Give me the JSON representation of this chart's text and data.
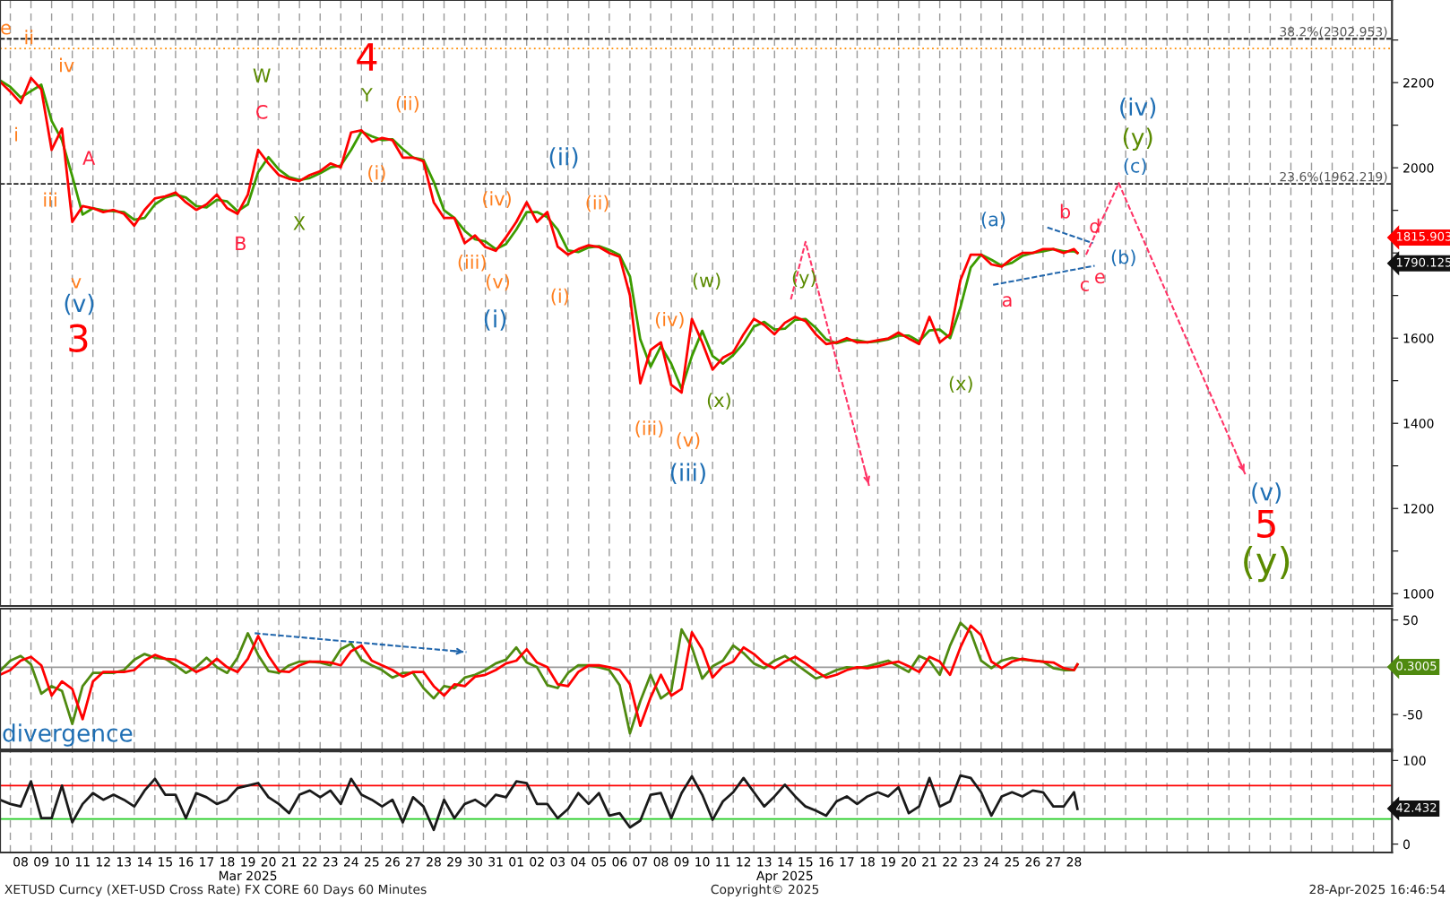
{
  "chart_data": [
    {
      "type": "line",
      "xlim": [
        "2025-03-07T12:00",
        "2025-05-13T21:30"
      ],
      "ylim": [
        971,
        2394
      ],
      "yticks": [
        1000,
        {
          "value": 1100,
          "label": null
        },
        1200,
        {
          "value": 1300,
          "label": null
        },
        1400,
        {
          "value": 1500,
          "label": null
        },
        1600,
        {
          "value": 1700,
          "label": null
        },
        {
          "value": 1800,
          "label": null
        },
        {
          "value": 1900,
          "label": null
        },
        2000,
        {
          "value": 2100,
          "label": null
        },
        2200,
        {
          "value": 2300,
          "label": null
        }
      ],
      "tick_labels": "y",
      "grid": "x",
      "marker": "none",
      "line_style": "solid",
      "x": [
        "2025-03-07T12:00",
        "2025-03-08T00:00",
        "2025-03-08T12:00",
        "2025-03-09T00:00",
        "2025-03-09T12:00",
        "2025-03-10T00:00",
        "2025-03-10T12:00",
        "2025-03-11T00:00",
        "2025-03-11T12:00",
        "2025-03-12T00:00",
        "2025-03-12T12:00",
        "2025-03-13T00:00",
        "2025-03-13T12:00",
        "2025-03-14T00:00",
        "2025-03-14T12:00",
        "2025-03-15T00:00",
        "2025-03-15T12:00",
        "2025-03-16T00:00",
        "2025-03-16T12:00",
        "2025-03-17T00:00",
        "2025-03-17T12:00",
        "2025-03-18T00:00",
        "2025-03-18T12:00",
        "2025-03-19T00:00",
        "2025-03-19T12:00",
        "2025-03-20T00:00",
        "2025-03-20T12:00",
        "2025-03-21T00:00",
        "2025-03-21T12:00",
        "2025-03-22T00:00",
        "2025-03-22T12:00",
        "2025-03-23T00:00",
        "2025-03-23T12:00",
        "2025-03-24T00:00",
        "2025-03-24T12:00",
        "2025-03-25T00:00",
        "2025-03-25T12:00",
        "2025-03-26T00:00",
        "2025-03-26T12:00",
        "2025-03-27T00:00",
        "2025-03-27T12:00",
        "2025-03-28T00:00",
        "2025-03-28T12:00",
        "2025-03-29T00:00",
        "2025-03-29T12:00",
        "2025-03-30T00:00",
        "2025-03-30T12:00",
        "2025-03-31T00:00",
        "2025-03-31T12:00",
        "2025-04-01T00:00",
        "2025-04-01T12:00",
        "2025-04-02T00:00",
        "2025-04-02T12:00",
        "2025-04-03T00:00",
        "2025-04-03T12:00",
        "2025-04-04T00:00",
        "2025-04-04T12:00",
        "2025-04-05T00:00",
        "2025-04-05T12:00",
        "2025-04-06T00:00",
        "2025-04-06T12:00",
        "2025-04-07T00:00",
        "2025-04-07T12:00",
        "2025-04-08T00:00",
        "2025-04-08T12:00",
        "2025-04-09T00:00",
        "2025-04-09T12:00",
        "2025-04-10T00:00",
        "2025-04-10T12:00",
        "2025-04-11T00:00",
        "2025-04-11T12:00",
        "2025-04-12T00:00",
        "2025-04-12T12:00",
        "2025-04-13T00:00",
        "2025-04-13T12:00",
        "2025-04-14T00:00",
        "2025-04-14T12:00",
        "2025-04-15T00:00",
        "2025-04-15T12:00",
        "2025-04-16T00:00",
        "2025-04-16T12:00",
        "2025-04-17T00:00",
        "2025-04-17T12:00",
        "2025-04-18T00:00",
        "2025-04-18T12:00",
        "2025-04-19T00:00",
        "2025-04-19T12:00",
        "2025-04-20T00:00",
        "2025-04-20T12:00",
        "2025-04-21T00:00",
        "2025-04-21T12:00",
        "2025-04-22T00:00",
        "2025-04-22T12:00",
        "2025-04-23T00:00",
        "2025-04-23T12:00",
        "2025-04-24T00:00",
        "2025-04-24T12:00",
        "2025-04-25T00:00",
        "2025-04-25T12:00",
        "2025-04-26T00:00",
        "2025-04-26T12:00",
        "2025-04-27T00:00",
        "2025-04-27T12:00",
        "2025-04-28T00:00",
        "2025-04-28T12:00",
        "2025-04-28T16:00"
      ],
      "series": [
        {
          "color": "#3c9b00",
          "values": [
            2205,
            2190,
            2165,
            2180,
            2195,
            2110,
            2065,
            1980,
            1890,
            1905,
            1900,
            1898,
            1896,
            1878,
            1882,
            1914,
            1930,
            1937,
            1930,
            1910,
            1907,
            1925,
            1921,
            1898,
            1914,
            1990,
            2025,
            1996,
            1978,
            1971,
            1976,
            1987,
            2001,
            2005,
            2042,
            2085,
            2074,
            2065,
            2067,
            2044,
            2024,
            2019,
            1967,
            1900,
            1882,
            1852,
            1832,
            1827,
            1809,
            1821,
            1855,
            1896,
            1896,
            1884,
            1855,
            1806,
            1802,
            1813,
            1816,
            1807,
            1795,
            1745,
            1597,
            1533,
            1581,
            1540,
            1481,
            1558,
            1617,
            1558,
            1540,
            1560,
            1588,
            1627,
            1638,
            1620,
            1622,
            1643,
            1645,
            1624,
            1597,
            1588,
            1595,
            1595,
            1590,
            1592,
            1597,
            1606,
            1606,
            1592,
            1618,
            1620,
            1600,
            1672,
            1766,
            1796,
            1784,
            1770,
            1777,
            1793,
            1800,
            1804,
            1809,
            1804,
            1804,
            1800
          ]
        },
        {
          "color": "#ff0000",
          "values": [
            2202,
            2179,
            2152,
            2211,
            2184,
            2042,
            2092,
            1873,
            1910,
            1905,
            1896,
            1901,
            1892,
            1864,
            1901,
            1928,
            1933,
            1942,
            1919,
            1901,
            1914,
            1937,
            1905,
            1892,
            1937,
            2042,
            2010,
            1983,
            1974,
            1969,
            1983,
            1992,
            2010,
            2001,
            2083,
            2088,
            2061,
            2070,
            2065,
            2024,
            2024,
            2015,
            1919,
            1882,
            1882,
            1823,
            1841,
            1814,
            1805,
            1837,
            1873,
            1919,
            1873,
            1896,
            1815,
            1796,
            1809,
            1818,
            1814,
            1800,
            1791,
            1700,
            1494,
            1572,
            1590,
            1490,
            1472,
            1645,
            1590,
            1526,
            1554,
            1567,
            1609,
            1645,
            1631,
            1609,
            1636,
            1650,
            1640,
            1609,
            1586,
            1590,
            1600,
            1590,
            1590,
            1595,
            1599,
            1613,
            1599,
            1586,
            1650,
            1590,
            1609,
            1736,
            1796,
            1796,
            1773,
            1768,
            1787,
            1800,
            1800,
            1809,
            1809,
            1800,
            1809,
            1800
          ]
        },
        {
          "color": "#ff3366",
          "line_style": "dashed",
          "x": [
            "2025-04-14T19:00",
            "2025-04-15T12:00",
            "2025-04-18T14:00"
          ],
          "values": [
            1691,
            1826,
            1252
          ]
        },
        {
          "color": "#ff3366",
          "line_style": "dashed",
          "x": [
            "2025-04-29T02:00",
            "2025-04-30T16:00",
            "2025-05-06T19:00"
          ],
          "values": [
            1796,
            1964,
            1280
          ]
        },
        {
          "color": "#2166ac",
          "line_style": "dashed",
          "x": [
            "2025-04-27T05:00",
            "2025-04-29T10:00"
          ],
          "values": [
            1860,
            1823
          ]
        },
        {
          "color": "#2166ac",
          "line_style": "dashed",
          "x": [
            "2025-04-24T14:00",
            "2025-04-29T12:00"
          ],
          "values": [
            1725,
            1770
          ]
        }
      ],
      "ref_lines": [
        {
          "axis": "y",
          "value": 2302.953,
          "label": "38.2%(2302.953)",
          "color": "#222222",
          "line_style": "dashed"
        },
        {
          "axis": "y",
          "value": 1962.219,
          "label": "23.6%(1962.219)",
          "color": "#222222",
          "line_style": "dashed"
        },
        {
          "axis": "y",
          "value": 2280,
          "color": "#ff8c00",
          "line_style": "dotted"
        }
      ],
      "annotations": [
        "e",
        "ii",
        "i",
        "iv",
        "iii",
        "A",
        "v",
        "(v)",
        "3",
        "W",
        "C",
        "B",
        "X",
        "4",
        "Y",
        "(ii)",
        "(i)",
        "(iv)",
        "(iii)",
        "(v)",
        "(i)",
        "(ii)",
        "(ii)",
        "(i)",
        "(iii)",
        "(iv)",
        "(v)",
        "(iii)",
        "(w)",
        "(x)",
        "(y)",
        "(x)",
        "(a)",
        "a",
        "b",
        "c",
        "d",
        "e",
        "(b)",
        "(iv)",
        "(y)",
        "(c)",
        "(v)",
        "5",
        "(y)",
        "1815.903",
        "1790.125"
      ]
    },
    {
      "type": "line",
      "xlim": [
        "2025-03-07T12:00",
        "2025-05-13T21:30"
      ],
      "ylim": [
        -87,
        62
      ],
      "yticks": [
        50,
        -50
      ],
      "tick_labels": "y",
      "grid": "x",
      "marker": "none",
      "line_style": "solid",
      "x": [
        "2025-03-07T12:00",
        "2025-03-08T00:00",
        "2025-03-08T12:00",
        "2025-03-09T00:00",
        "2025-03-09T12:00",
        "2025-03-10T00:00",
        "2025-03-10T12:00",
        "2025-03-11T00:00",
        "2025-03-11T12:00",
        "2025-03-12T00:00",
        "2025-03-12T12:00",
        "2025-03-13T00:00",
        "2025-03-13T12:00",
        "2025-03-14T00:00",
        "2025-03-14T12:00",
        "2025-03-15T00:00",
        "2025-03-15T12:00",
        "2025-03-16T00:00",
        "2025-03-16T12:00",
        "2025-03-17T00:00",
        "2025-03-17T12:00",
        "2025-03-18T00:00",
        "2025-03-18T12:00",
        "2025-03-19T00:00",
        "2025-03-19T12:00",
        "2025-03-20T00:00",
        "2025-03-20T12:00",
        "2025-03-21T00:00",
        "2025-03-21T12:00",
        "2025-03-22T00:00",
        "2025-03-22T12:00",
        "2025-03-23T00:00",
        "2025-03-23T12:00",
        "2025-03-24T00:00",
        "2025-03-24T12:00",
        "2025-03-25T00:00",
        "2025-03-25T12:00",
        "2025-03-26T00:00",
        "2025-03-26T12:00",
        "2025-03-27T00:00",
        "2025-03-27T12:00",
        "2025-03-28T00:00",
        "2025-03-28T12:00",
        "2025-03-29T00:00",
        "2025-03-29T12:00",
        "2025-03-30T00:00",
        "2025-03-30T12:00",
        "2025-03-31T00:00",
        "2025-03-31T12:00",
        "2025-04-01T00:00",
        "2025-04-01T12:00",
        "2025-04-02T00:00",
        "2025-04-02T12:00",
        "2025-04-03T00:00",
        "2025-04-03T12:00",
        "2025-04-04T00:00",
        "2025-04-04T12:00",
        "2025-04-05T00:00",
        "2025-04-05T12:00",
        "2025-04-06T00:00",
        "2025-04-06T12:00",
        "2025-04-07T00:00",
        "2025-04-07T12:00",
        "2025-04-08T00:00",
        "2025-04-08T12:00",
        "2025-04-09T00:00",
        "2025-04-09T12:00",
        "2025-04-10T00:00",
        "2025-04-10T12:00",
        "2025-04-11T00:00",
        "2025-04-11T12:00",
        "2025-04-12T00:00",
        "2025-04-12T12:00",
        "2025-04-13T00:00",
        "2025-04-13T12:00",
        "2025-04-14T00:00",
        "2025-04-14T12:00",
        "2025-04-15T00:00",
        "2025-04-15T12:00",
        "2025-04-16T00:00",
        "2025-04-16T12:00",
        "2025-04-17T00:00",
        "2025-04-17T12:00",
        "2025-04-18T00:00",
        "2025-04-18T12:00",
        "2025-04-19T00:00",
        "2025-04-19T12:00",
        "2025-04-20T00:00",
        "2025-04-20T12:00",
        "2025-04-21T00:00",
        "2025-04-21T12:00",
        "2025-04-22T00:00",
        "2025-04-22T12:00",
        "2025-04-23T00:00",
        "2025-04-23T12:00",
        "2025-04-24T00:00",
        "2025-04-24T12:00",
        "2025-04-25T00:00",
        "2025-04-25T12:00",
        "2025-04-26T00:00",
        "2025-04-26T12:00",
        "2025-04-27T00:00",
        "2025-04-27T12:00",
        "2025-04-28T00:00",
        "2025-04-28T12:00",
        "2025-04-28T16:00"
      ],
      "series": [
        {
          "color": "#4f8a10",
          "values": [
            -4,
            7,
            12,
            3,
            -28,
            -20,
            -25,
            -60,
            -20,
            -6,
            -6,
            -6,
            -3,
            8,
            14,
            10,
            9,
            2,
            -6,
            0,
            10,
            0,
            -6,
            10,
            36,
            13,
            -4,
            -6,
            2,
            6,
            6,
            5,
            2,
            19,
            25,
            8,
            2,
            -3,
            -11,
            -6,
            -6,
            -22,
            -33,
            -20,
            -22,
            -11,
            -8,
            -3,
            4,
            8,
            21,
            5,
            0,
            -19,
            -22,
            -6,
            2,
            2,
            0,
            -3,
            -19,
            -70,
            -36,
            -8,
            -33,
            -25,
            40,
            21,
            -12,
            1,
            7,
            23,
            15,
            4,
            -1,
            7,
            12,
            4,
            -4,
            -12,
            -8,
            -3,
            0,
            -1,
            1,
            4,
            7,
            1,
            -5,
            12,
            7,
            -8,
            23,
            47,
            37,
            7,
            -1,
            7,
            10,
            8,
            7,
            6,
            -1,
            -3,
            -3,
            3
          ]
        },
        {
          "color": "#ff0000",
          "values": [
            -8,
            -3,
            7,
            11,
            2,
            -30,
            -15,
            -23,
            -55,
            -15,
            -5,
            -5,
            -5,
            -3,
            7,
            13,
            9,
            8,
            2,
            -5,
            0,
            9,
            0,
            -5,
            9,
            33,
            12,
            -4,
            -5,
            2,
            6,
            6,
            5,
            2,
            17,
            23,
            7,
            2,
            -3,
            -10,
            -5,
            -5,
            -20,
            -30,
            -18,
            -20,
            -10,
            -8,
            -3,
            4,
            7,
            19,
            5,
            0,
            -18,
            -20,
            -5,
            2,
            2,
            0,
            -3,
            -18,
            -62,
            -32,
            -8,
            -30,
            -23,
            37,
            19,
            -11,
            1,
            6,
            21,
            14,
            4,
            -1,
            6,
            11,
            4,
            -4,
            -11,
            -8,
            -3,
            0,
            -1,
            1,
            4,
            6,
            1,
            -5,
            11,
            6,
            -8,
            21,
            44,
            34,
            6,
            -1,
            6,
            9,
            7,
            6,
            5,
            -1,
            -3,
            3
          ]
        },
        {
          "color": "#2166ac",
          "line_style": "dashed",
          "x": [
            "2025-03-19T20:00",
            "2025-03-30T02:00"
          ],
          "values": [
            36,
            16
          ]
        }
      ],
      "ref_lines": [
        {
          "axis": "y",
          "value": 0,
          "color": "#9a9a9a",
          "line_style": "solid"
        }
      ],
      "annotations": [
        "divergence",
        "0.3005"
      ]
    },
    {
      "type": "line",
      "xlim": [
        "2025-03-07T12:00",
        "2025-05-13T21:30"
      ],
      "ylim": [
        -10,
        111
      ],
      "yticks": [
        0,
        {
          "value": 50,
          "label": null
        },
        100
      ],
      "grid": "x",
      "marker": "none",
      "line_style": "solid",
      "xticks": [
        {
          "value": "2025-03-08T12:00",
          "label": "08"
        },
        {
          "value": "2025-03-09T12:00",
          "label": "09"
        },
        {
          "value": "2025-03-10T12:00",
          "label": "10"
        },
        {
          "value": "2025-03-11T12:00",
          "label": "11"
        },
        {
          "value": "2025-03-12T12:00",
          "label": "12"
        },
        {
          "value": "2025-03-13T12:00",
          "label": "13"
        },
        {
          "value": "2025-03-14T12:00",
          "label": "14"
        },
        {
          "value": "2025-03-15T12:00",
          "label": "15"
        },
        {
          "value": "2025-03-16T12:00",
          "label": "16"
        },
        {
          "value": "2025-03-17T12:00",
          "label": "17"
        },
        {
          "value": "2025-03-18T12:00",
          "label": "18"
        },
        {
          "value": "2025-03-19T12:00",
          "label": "19\nMar 2025"
        },
        {
          "value": "2025-03-20T12:00",
          "label": "20"
        },
        {
          "value": "2025-03-21T12:00",
          "label": "21"
        },
        {
          "value": "2025-03-22T12:00",
          "label": "22"
        },
        {
          "value": "2025-03-23T12:00",
          "label": "23"
        },
        {
          "value": "2025-03-24T12:00",
          "label": "24"
        },
        {
          "value": "2025-03-25T12:00",
          "label": "25"
        },
        {
          "value": "2025-03-26T12:00",
          "label": "26"
        },
        {
          "value": "2025-03-27T12:00",
          "label": "27"
        },
        {
          "value": "2025-03-28T12:00",
          "label": "28"
        },
        {
          "value": "2025-03-29T12:00",
          "label": "29"
        },
        {
          "value": "2025-03-30T12:00",
          "label": "30"
        },
        {
          "value": "2025-03-31T12:00",
          "label": "31"
        },
        {
          "value": "2025-04-01T12:00",
          "label": "01"
        },
        {
          "value": "2025-04-02T12:00",
          "label": "02"
        },
        {
          "value": "2025-04-03T12:00",
          "label": "03"
        },
        {
          "value": "2025-04-04T12:00",
          "label": "04"
        },
        {
          "value": "2025-04-05T12:00",
          "label": "05"
        },
        {
          "value": "2025-04-06T12:00",
          "label": "06"
        },
        {
          "value": "2025-04-07T12:00",
          "label": "07"
        },
        {
          "value": "2025-04-08T12:00",
          "label": "08"
        },
        {
          "value": "2025-04-09T12:00",
          "label": "09"
        },
        {
          "value": "2025-04-10T12:00",
          "label": "10"
        },
        {
          "value": "2025-04-11T12:00",
          "label": "11"
        },
        {
          "value": "2025-04-12T12:00",
          "label": "12"
        },
        {
          "value": "2025-04-13T12:00",
          "label": "13"
        },
        {
          "value": "2025-04-14T12:00",
          "label": "14\nApr 2025"
        },
        {
          "value": "2025-04-15T12:00",
          "label": "15"
        },
        {
          "value": "2025-04-16T12:00",
          "label": "16"
        },
        {
          "value": "2025-04-17T12:00",
          "label": "17"
        },
        {
          "value": "2025-04-18T12:00",
          "label": "18"
        },
        {
          "value": "2025-04-19T12:00",
          "label": "19"
        },
        {
          "value": "2025-04-20T12:00",
          "label": "20"
        },
        {
          "value": "2025-04-21T12:00",
          "label": "21"
        },
        {
          "value": "2025-04-22T12:00",
          "label": "22"
        },
        {
          "value": "2025-04-23T12:00",
          "label": "23"
        },
        {
          "value": "2025-04-24T12:00",
          "label": "24"
        },
        {
          "value": "2025-04-25T12:00",
          "label": "25"
        },
        {
          "value": "2025-04-26T12:00",
          "label": "26"
        },
        {
          "value": "2025-04-27T12:00",
          "label": "27"
        },
        {
          "value": "2025-04-28T12:00",
          "label": "28"
        }
      ],
      "x": [
        "2025-03-07T12:00",
        "2025-03-08T00:00",
        "2025-03-08T12:00",
        "2025-03-09T00:00",
        "2025-03-09T12:00",
        "2025-03-10T00:00",
        "2025-03-10T12:00",
        "2025-03-11T00:00",
        "2025-03-11T12:00",
        "2025-03-12T00:00",
        "2025-03-12T12:00",
        "2025-03-13T00:00",
        "2025-03-13T12:00",
        "2025-03-14T00:00",
        "2025-03-14T12:00",
        "2025-03-15T00:00",
        "2025-03-15T12:00",
        "2025-03-16T00:00",
        "2025-03-16T12:00",
        "2025-03-17T00:00",
        "2025-03-17T12:00",
        "2025-03-18T00:00",
        "2025-03-18T12:00",
        "2025-03-19T00:00",
        "2025-03-19T12:00",
        "2025-03-20T00:00",
        "2025-03-20T12:00",
        "2025-03-21T00:00",
        "2025-03-21T12:00",
        "2025-03-22T00:00",
        "2025-03-22T12:00",
        "2025-03-23T00:00",
        "2025-03-23T12:00",
        "2025-03-24T00:00",
        "2025-03-24T12:00",
        "2025-03-25T00:00",
        "2025-03-25T12:00",
        "2025-03-26T00:00",
        "2025-03-26T12:00",
        "2025-03-27T00:00",
        "2025-03-27T12:00",
        "2025-03-28T00:00",
        "2025-03-28T12:00",
        "2025-03-29T00:00",
        "2025-03-29T12:00",
        "2025-03-30T00:00",
        "2025-03-30T12:00",
        "2025-03-31T00:00",
        "2025-03-31T12:00",
        "2025-04-01T00:00",
        "2025-04-01T12:00",
        "2025-04-02T00:00",
        "2025-04-02T12:00",
        "2025-04-03T00:00",
        "2025-04-03T12:00",
        "2025-04-04T00:00",
        "2025-04-04T12:00",
        "2025-04-05T00:00",
        "2025-04-05T12:00",
        "2025-04-06T00:00",
        "2025-04-06T12:00",
        "2025-04-07T00:00",
        "2025-04-07T12:00",
        "2025-04-08T00:00",
        "2025-04-08T12:00",
        "2025-04-09T00:00",
        "2025-04-09T12:00",
        "2025-04-10T00:00",
        "2025-04-10T12:00",
        "2025-04-11T00:00",
        "2025-04-11T12:00",
        "2025-04-12T00:00",
        "2025-04-12T12:00",
        "2025-04-13T00:00",
        "2025-04-13T12:00",
        "2025-04-14T00:00",
        "2025-04-14T12:00",
        "2025-04-15T00:00",
        "2025-04-15T12:00",
        "2025-04-16T00:00",
        "2025-04-16T12:00",
        "2025-04-17T00:00",
        "2025-04-17T12:00",
        "2025-04-18T00:00",
        "2025-04-18T12:00",
        "2025-04-19T00:00",
        "2025-04-19T12:00",
        "2025-04-20T00:00",
        "2025-04-20T12:00",
        "2025-04-21T00:00",
        "2025-04-21T12:00",
        "2025-04-22T00:00",
        "2025-04-22T12:00",
        "2025-04-23T00:00",
        "2025-04-23T12:00",
        "2025-04-24T00:00",
        "2025-04-24T12:00",
        "2025-04-25T00:00",
        "2025-04-25T12:00",
        "2025-04-26T00:00",
        "2025-04-26T12:00",
        "2025-04-27T00:00",
        "2025-04-27T12:00",
        "2025-04-28T00:00",
        "2025-04-28T12:00",
        "2025-04-28T16:00"
      ],
      "series": [
        {
          "color": "#1a1a1a",
          "values": [
            53,
            48,
            45,
            75,
            31,
            31,
            70,
            26,
            48,
            61,
            53,
            59,
            53,
            45,
            64,
            78,
            59,
            59,
            31,
            61,
            56,
            48,
            53,
            67,
            70,
            73,
            56,
            48,
            37,
            59,
            64,
            56,
            64,
            48,
            78,
            59,
            53,
            45,
            53,
            26,
            56,
            45,
            17,
            53,
            31,
            48,
            53,
            45,
            59,
            56,
            75,
            73,
            48,
            48,
            31,
            42,
            61,
            48,
            61,
            34,
            37,
            20,
            28,
            59,
            61,
            31,
            61,
            81,
            59,
            29,
            51,
            62,
            79,
            62,
            45,
            57,
            71,
            57,
            45,
            40,
            34,
            51,
            57,
            48,
            57,
            62,
            57,
            68,
            37,
            45,
            79,
            45,
            51,
            82,
            79,
            62,
            34,
            57,
            62,
            57,
            64,
            62,
            45,
            45,
            62,
            42
          ]
        }
      ],
      "ref_lines": [
        {
          "axis": "y",
          "value": 70,
          "color": "#ff0000",
          "line_style": "solid"
        },
        {
          "axis": "y",
          "value": 30,
          "color": "#22cc22",
          "line_style": "solid"
        }
      ],
      "annotations": [
        "42.432",
        "XETUSD Curncy (XET-USD Cross Rate) FX CORE 60 Days 60 Minutes",
        "Copyright© 2025",
        "28-Apr-2025 16:46:54"
      ]
    }
  ]
}
